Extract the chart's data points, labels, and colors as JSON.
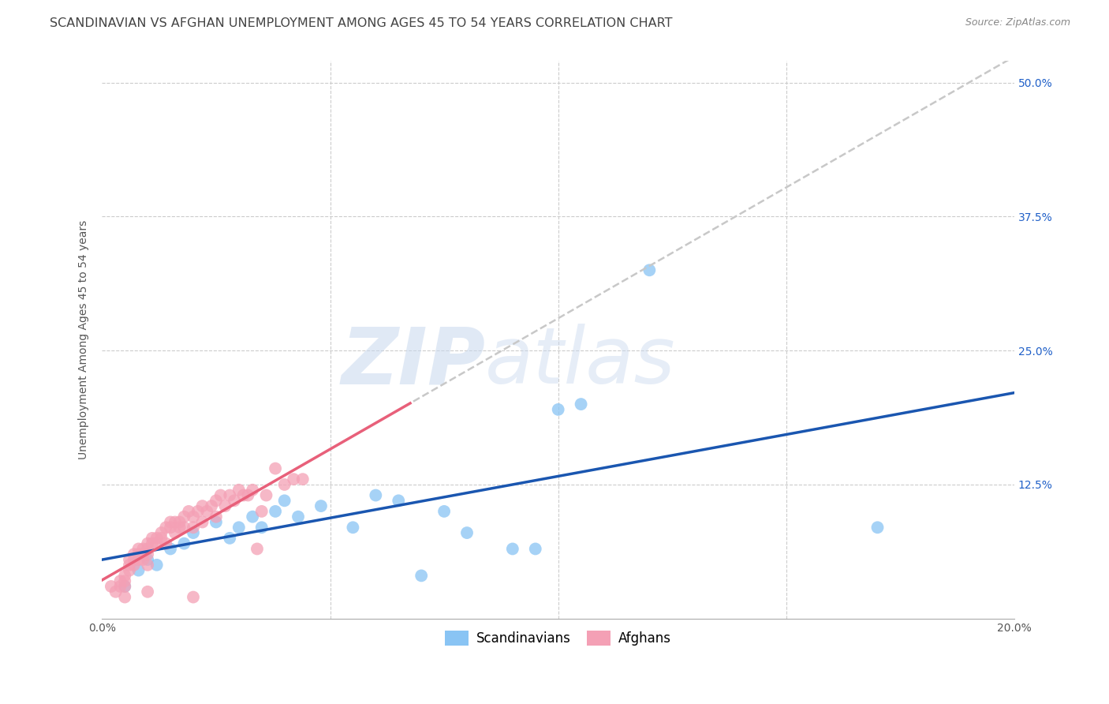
{
  "title": "SCANDINAVIAN VS AFGHAN UNEMPLOYMENT AMONG AGES 45 TO 54 YEARS CORRELATION CHART",
  "source": "Source: ZipAtlas.com",
  "ylabel": "Unemployment Among Ages 45 to 54 years",
  "xlim": [
    0.0,
    0.2
  ],
  "ylim": [
    0.0,
    0.52
  ],
  "xticks": [
    0.0,
    0.05,
    0.1,
    0.15,
    0.2
  ],
  "yticks": [
    0.0,
    0.125,
    0.25,
    0.375,
    0.5
  ],
  "xticklabels": [
    "0.0%",
    "",
    "",
    "",
    "20.0%"
  ],
  "yticklabels": [
    "",
    "12.5%",
    "25.0%",
    "37.5%",
    "50.0%"
  ],
  "grid_color": "#cccccc",
  "background_color": "#ffffff",
  "scandinavian_color": "#89c4f4",
  "afghan_color": "#f4a0b5",
  "trend_blue": "#1a56b0",
  "trend_pink": "#e8607a",
  "trend_dashed_color": "#c8c8c8",
  "legend_text_color": "#2060c8",
  "title_color": "#444444",
  "ylabel_color": "#555555",
  "tick_color_x": "#555555",
  "tick_color_y": "#2060c8",
  "scandinavian_points": [
    [
      0.005,
      0.03
    ],
    [
      0.008,
      0.045
    ],
    [
      0.01,
      0.055
    ],
    [
      0.012,
      0.05
    ],
    [
      0.015,
      0.065
    ],
    [
      0.018,
      0.07
    ],
    [
      0.02,
      0.08
    ],
    [
      0.025,
      0.09
    ],
    [
      0.028,
      0.075
    ],
    [
      0.03,
      0.085
    ],
    [
      0.033,
      0.095
    ],
    [
      0.035,
      0.085
    ],
    [
      0.038,
      0.1
    ],
    [
      0.04,
      0.11
    ],
    [
      0.043,
      0.095
    ],
    [
      0.048,
      0.105
    ],
    [
      0.055,
      0.085
    ],
    [
      0.06,
      0.115
    ],
    [
      0.065,
      0.11
    ],
    [
      0.07,
      0.04
    ],
    [
      0.075,
      0.1
    ],
    [
      0.08,
      0.08
    ],
    [
      0.09,
      0.065
    ],
    [
      0.095,
      0.065
    ],
    [
      0.1,
      0.195
    ],
    [
      0.105,
      0.2
    ],
    [
      0.12,
      0.325
    ],
    [
      0.17,
      0.085
    ]
  ],
  "afghan_points": [
    [
      0.002,
      0.03
    ],
    [
      0.003,
      0.025
    ],
    [
      0.004,
      0.03
    ],
    [
      0.004,
      0.035
    ],
    [
      0.005,
      0.04
    ],
    [
      0.005,
      0.035
    ],
    [
      0.005,
      0.03
    ],
    [
      0.006,
      0.055
    ],
    [
      0.006,
      0.05
    ],
    [
      0.006,
      0.045
    ],
    [
      0.007,
      0.06
    ],
    [
      0.007,
      0.055
    ],
    [
      0.007,
      0.05
    ],
    [
      0.008,
      0.065
    ],
    [
      0.008,
      0.06
    ],
    [
      0.008,
      0.055
    ],
    [
      0.009,
      0.065
    ],
    [
      0.009,
      0.06
    ],
    [
      0.009,
      0.055
    ],
    [
      0.01,
      0.07
    ],
    [
      0.01,
      0.065
    ],
    [
      0.01,
      0.06
    ],
    [
      0.01,
      0.05
    ],
    [
      0.011,
      0.075
    ],
    [
      0.011,
      0.07
    ],
    [
      0.012,
      0.075
    ],
    [
      0.012,
      0.07
    ],
    [
      0.013,
      0.08
    ],
    [
      0.013,
      0.075
    ],
    [
      0.014,
      0.085
    ],
    [
      0.014,
      0.07
    ],
    [
      0.015,
      0.09
    ],
    [
      0.015,
      0.085
    ],
    [
      0.016,
      0.09
    ],
    [
      0.016,
      0.08
    ],
    [
      0.017,
      0.09
    ],
    [
      0.017,
      0.085
    ],
    [
      0.018,
      0.095
    ],
    [
      0.018,
      0.085
    ],
    [
      0.019,
      0.1
    ],
    [
      0.02,
      0.095
    ],
    [
      0.02,
      0.085
    ],
    [
      0.021,
      0.1
    ],
    [
      0.022,
      0.105
    ],
    [
      0.022,
      0.09
    ],
    [
      0.023,
      0.1
    ],
    [
      0.024,
      0.105
    ],
    [
      0.025,
      0.11
    ],
    [
      0.025,
      0.095
    ],
    [
      0.026,
      0.115
    ],
    [
      0.027,
      0.105
    ],
    [
      0.028,
      0.115
    ],
    [
      0.029,
      0.11
    ],
    [
      0.03,
      0.12
    ],
    [
      0.031,
      0.115
    ],
    [
      0.032,
      0.115
    ],
    [
      0.033,
      0.12
    ],
    [
      0.034,
      0.065
    ],
    [
      0.035,
      0.1
    ],
    [
      0.036,
      0.115
    ],
    [
      0.038,
      0.14
    ],
    [
      0.04,
      0.125
    ],
    [
      0.042,
      0.13
    ],
    [
      0.044,
      0.13
    ],
    [
      0.005,
      0.02
    ],
    [
      0.01,
      0.025
    ],
    [
      0.02,
      0.02
    ]
  ],
  "watermark_zip": "ZIP",
  "watermark_atlas": "atlas",
  "title_fontsize": 11.5,
  "label_fontsize": 10,
  "tick_fontsize": 10,
  "legend_fontsize": 12
}
